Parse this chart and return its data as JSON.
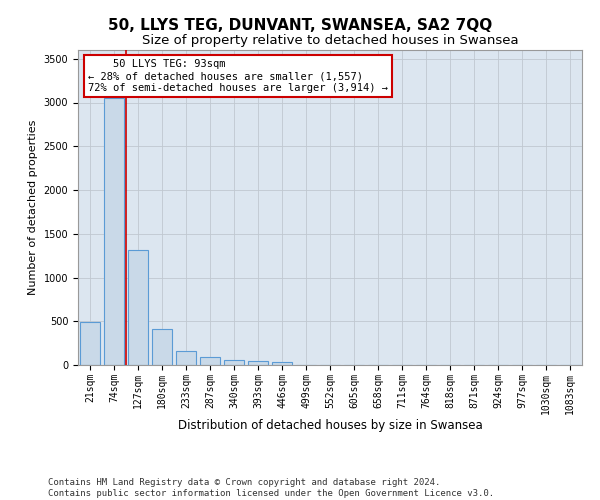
{
  "title": "50, LLYS TEG, DUNVANT, SWANSEA, SA2 7QQ",
  "subtitle": "Size of property relative to detached houses in Swansea",
  "xlabel": "Distribution of detached houses by size in Swansea",
  "ylabel": "Number of detached properties",
  "categories": [
    "21sqm",
    "74sqm",
    "127sqm",
    "180sqm",
    "233sqm",
    "287sqm",
    "340sqm",
    "393sqm",
    "446sqm",
    "499sqm",
    "552sqm",
    "605sqm",
    "658sqm",
    "711sqm",
    "764sqm",
    "818sqm",
    "871sqm",
    "924sqm",
    "977sqm",
    "1030sqm",
    "1083sqm"
  ],
  "values": [
    490,
    3050,
    1310,
    410,
    165,
    90,
    60,
    50,
    40,
    0,
    0,
    0,
    0,
    0,
    0,
    0,
    0,
    0,
    0,
    0,
    0
  ],
  "bar_color": "#c9d9e8",
  "bar_edge_color": "#5b9bd5",
  "grid_color": "#c0c8d0",
  "background_color": "#dce6f0",
  "property_line_x": 1.5,
  "annotation_text": "    50 LLYS TEG: 93sqm\n← 28% of detached houses are smaller (1,557)\n72% of semi-detached houses are larger (3,914) →",
  "annotation_box_color": "#ffffff",
  "annotation_border_color": "#cc0000",
  "footer": "Contains HM Land Registry data © Crown copyright and database right 2024.\nContains public sector information licensed under the Open Government Licence v3.0.",
  "ylim": [
    0,
    3600
  ],
  "yticks": [
    0,
    500,
    1000,
    1500,
    2000,
    2500,
    3000,
    3500
  ],
  "red_line_color": "#cc0000",
  "title_fontsize": 11,
  "subtitle_fontsize": 9.5,
  "tick_fontsize": 7,
  "ylabel_fontsize": 8,
  "xlabel_fontsize": 8.5,
  "footer_fontsize": 6.5,
  "annotation_fontsize": 7.5
}
